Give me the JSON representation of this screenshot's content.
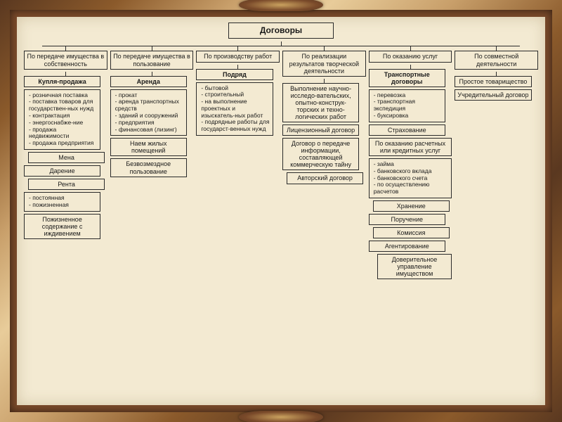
{
  "colors": {
    "paper_bg": "#f3ead2",
    "border": "#2a2a2a",
    "text": "#1a1a1a",
    "frame_dark": "#5a3820",
    "frame_mid": "#8b5a2b",
    "frame_light": "#c9a06b",
    "ornament": "#caa25f"
  },
  "diagram": {
    "type": "tree",
    "title": "Договоры",
    "title_fontsize": 12,
    "box_fontsize": 9,
    "list_fontsize": 8.5,
    "border_width": 1,
    "columns": [
      {
        "header": "По передаче имущества в собственность",
        "blocks": [
          {
            "kind": "box",
            "text": "Купля-продажа",
            "bold": true
          },
          {
            "kind": "list",
            "items": [
              "розничная поставка",
              "поставка товаров для государствен-ных нужд",
              "контрактация",
              "энергоснабже-ние",
              "продажа недвижимости",
              "продажа предприятия"
            ]
          },
          {
            "kind": "box",
            "text": "Мена",
            "indent": 1
          },
          {
            "kind": "box",
            "text": "Дарение",
            "indent": 0
          },
          {
            "kind": "box",
            "text": "Рента",
            "indent": 1
          },
          {
            "kind": "list",
            "items": [
              "постоянная",
              "пожизненная"
            ]
          },
          {
            "kind": "box",
            "text": "Пожизненное содержание с иждивением",
            "indent": 0
          }
        ]
      },
      {
        "header": "По передаче имущества в пользование",
        "blocks": [
          {
            "kind": "box",
            "text": "Аренда",
            "bold": true
          },
          {
            "kind": "list",
            "items": [
              "прокат",
              "аренда транспортных средств",
              "зданий и сооружений",
              "предприятия",
              "финансовая (лизинг)"
            ]
          },
          {
            "kind": "box",
            "text": "Наем жилых помещений"
          },
          {
            "kind": "box",
            "text": "Безвозмездное пользование"
          }
        ]
      },
      {
        "header": "По производству работ",
        "blocks": [
          {
            "kind": "box",
            "text": "Подряд",
            "bold": true
          },
          {
            "kind": "list",
            "items": [
              "бытовой",
              "строительный",
              "на выполнение проектных и изыскатель-ных работ",
              "подрядные работы для государст-венных нужд"
            ]
          }
        ]
      },
      {
        "header": "По реализации результатов творческой деятельности",
        "blocks": [
          {
            "kind": "box",
            "text": "Выполнение научно-исследо-вательских, опытно-конструк-торских и техно-логических работ"
          },
          {
            "kind": "box",
            "text": "Лицензионный договор"
          },
          {
            "kind": "box",
            "text": "Договор о передаче информации, составляющей коммерческую тайну"
          },
          {
            "kind": "box",
            "text": "Авторский договор",
            "indent": 1
          }
        ]
      },
      {
        "header": "По оказанию услуг",
        "blocks": [
          {
            "kind": "box",
            "text": "Транспортные договоры",
            "bold": true
          },
          {
            "kind": "list",
            "items": [
              "перевозка",
              "транспортная экспедиция",
              "буксировка"
            ]
          },
          {
            "kind": "box",
            "text": "Страхование"
          },
          {
            "kind": "box",
            "text": "По оказанию расчетных или кредитных услуг",
            "wide": true
          },
          {
            "kind": "list",
            "items": [
              "займа",
              "банковского вклада",
              "банковского счета",
              "по осуществлению расчетов"
            ],
            "wide": true
          },
          {
            "kind": "box",
            "text": "Хранение",
            "indent": 1
          },
          {
            "kind": "box",
            "text": "Поручение",
            "indent": 0
          },
          {
            "kind": "box",
            "text": "Комиссия",
            "indent": 1
          },
          {
            "kind": "box",
            "text": "Агентирование",
            "indent": 0
          },
          {
            "kind": "box",
            "text": "Доверительное управление имуществом",
            "indent": 2,
            "wide": true
          }
        ]
      },
      {
        "header": "По совместной деятельности",
        "blocks": [
          {
            "kind": "box",
            "text": "Простое товарищество"
          },
          {
            "kind": "box",
            "text": "Учредительный договор"
          }
        ]
      }
    ]
  }
}
